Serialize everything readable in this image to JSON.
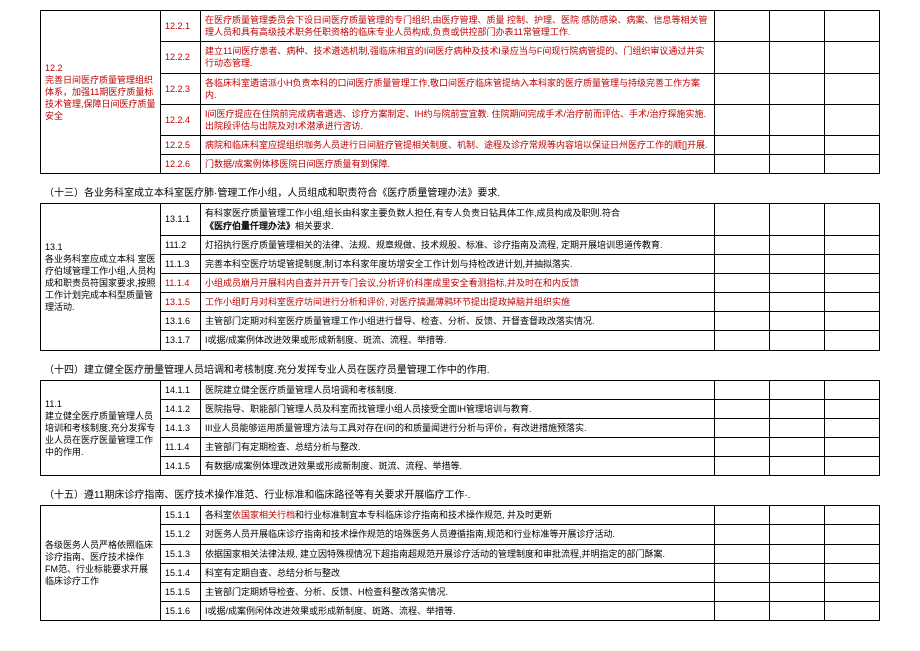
{
  "sections": [
    {
      "leftLabel": "12.2\n完善日间医疗质量管理组织体系，加强11期医疗质量标技术管理,保障日间医疗质量安全",
      "leftRed": true,
      "rows": [
        {
          "num": "12.2.1",
          "red": true,
          "text": "在医疗质量管理委员会下设日间医疗质量管理的专门组织,由医疗管理、质量 控制、护理、医院 感防感染、病案、信息等相关管理人员和具有高级技术职务任职资格的临床专业人员构成,负责或供控部门办表11常管理工作."
        },
        {
          "num": "12.2.2",
          "red": true,
          "text": "建立11间医疗患者、病种、技术遴选机制,强临床相宜的I间医疗病种及技术I录应当与F间现行院病管提的、门组织审议通过并实行动态管理."
        },
        {
          "num": "12.2.3",
          "red": true,
          "text": "各临床科室遴谙派小H负责本科的口间医疗质量管理工作,敬口间医疗临床管提纳入本科家的医疗质量管理与持级完善工作方案内."
        },
        {
          "num": "12.2.4",
          "red": true,
          "text": "I间医疗提应在住院前完成病者遴选、诊疗方案制定、IH约与院前宣宜教. 住院期间完成手术/治疗前而评估、手术/治疗探施实施. 出院段评估与出院及对I术潜承进行咨访."
        },
        {
          "num": "12.2.5",
          "red": true,
          "text": "病院和临床科室应提组织咖务人员进行日间脏疗管提相关制度、机制、途程及诊疗常规等内容培以保证日州医疗工作的顺[]开展."
        },
        {
          "num": "12.2.6",
          "red": true,
          "text": "门数据/成案例体移医院日间医疗质量有到保障."
        }
      ]
    }
  ],
  "title13": "（十三）各业务科室成立本科室医疗肺·管理工作小组，人员组成和职责符合《医疗质量管理办法》要求.",
  "section13": {
    "leftLabel": "13.1\n各业务科室应成立本科 室医疗伯域管理工作小组,人员构成和职责员符国家要求,按照工作计划完成本科型质量管理活动.",
    "rows": [
      {
        "num": "13.1.1",
        "text": "有科家医疗质量管理工作小组,组长由科家主要负数人担任,有专人负责日钻具体工作,成员构成及职则.符合《医疗伯量仟理办法》相关要求.",
        "boldPart": "《医疗伯量仟理办法》"
      },
      {
        "num": "111.2",
        "text": "灯招执行医疗质量管理相关的法律、法规、规章规做、技术规股、标准、诊疗指南及流程, 定期开展培训思道传教育."
      },
      {
        "num": "11.1.3",
        "text": "完善本科空医疗坊堤管提制度,制订本科家年度坊增安全工作计划与持检改进计划,并抽拟落实."
      },
      {
        "num": "11.1.4",
        "red": true,
        "text": "小组成员崩月开展科内自查并开开专门会议,分析评价科崖成里安全看测指标,并及时在和内反馈"
      },
      {
        "num": "13.1.5",
        "red": true,
        "text": "工作小组盯月对科室医疗坊间进行分析和评价, 对医疗搞漏薄鸦环节提出提政掉脑并组织实施"
      },
      {
        "num": "13.1.6",
        "text": "主管部门定期对科室医疗质量管理工作小组进行督导、检查、分析、反馈、开督查督政改落实情况."
      },
      {
        "num": "13.1.7",
        "text": "I戓据/成案例体改进效果或形成新制度、斑流、流程、举措等."
      }
    ]
  },
  "title14": "（十四）建立健全医疗册量管理人员培调和考核制度.充分发挥专业人员在医疗员量管理工作中的作用.",
  "section14": {
    "leftLabel": "11.1\n建立健全医疗质量管理人员培训和考核制度,充分发挥专业人员在医疗医量管理工作中的作用.",
    "rows": [
      {
        "num": "14.1.1",
        "text": "医院建立健全医疗质量管理人员培调和考核制度."
      },
      {
        "num": "14.1.2",
        "text": "医院指导、职能部门管理人员及科室而找管理小组人员接受全面IH管理培训与教育."
      },
      {
        "num": "14.1.3",
        "text": "III业人员能够运用质量管理方法与工具对存在I问的和质量闻进行分析与评价，有改进措施预落实."
      },
      {
        "num": "11.1.4",
        "text": "主管部门有定期检查、总结分析与整改."
      },
      {
        "num": "14.1.5",
        "text": "有数据/成案例体理改进效果或形成新制度、斑流、流程、举措等."
      }
    ]
  },
  "title15": "（十五）遵11期床诊疗指南、医疗技术操作准范、行业标准和临床路径等有关要求开展临疗工作·.",
  "section15": {
    "leftLabel": "各级医务人员严格依照临床诊疗指南、医疗技术操作FM范、行业标能要求开展临床诊疗工作",
    "rows": [
      {
        "num": "15.1.1",
        "text": "各科室依国家相关行档和行业标准制宜本专科临床诊疗指南和技术操作规范, 并及时更新",
        "redPart": "依国家相关行档"
      },
      {
        "num": "15.1.2",
        "text": "对医务人员开展临床诊疗指南和技术操作规范的培殊医务人员遵循指南,规范和行业标准等开展诊疗活动."
      },
      {
        "num": "15.1.3",
        "text": "依据国家相关法律法规, 建立因特殊视情况下超指南超规范开展诊疗活动的管理制度和审批流程,并明指定的部门酥案."
      },
      {
        "num": "15.1.4",
        "text": "科室有定期自查、总结分析与整改"
      },
      {
        "num": "15.1.5",
        "text": "主管部门定期娇导检查、分析、反馈、H检查科整改落实情况."
      },
      {
        "num": "15.1.6",
        "text": "I戓据/成案例闲体改进效果或形成新制度、斑路、流程、举措等."
      }
    ]
  }
}
